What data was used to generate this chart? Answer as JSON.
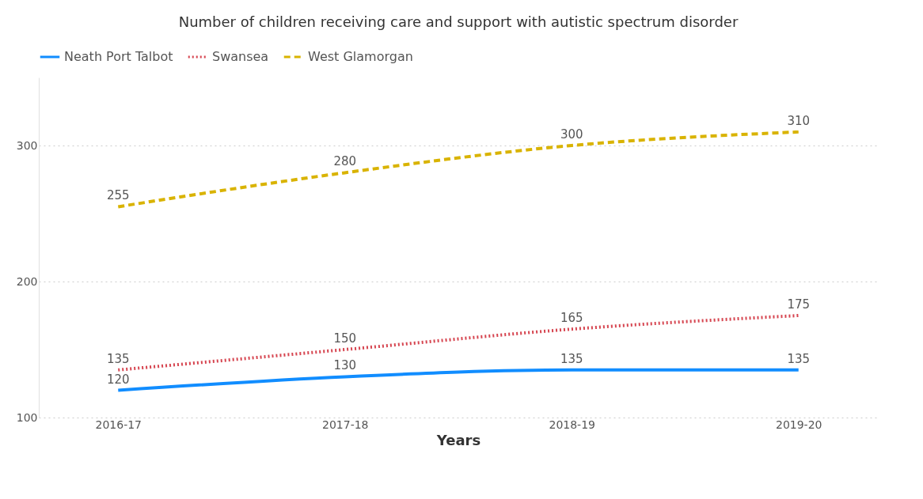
{
  "chart_data": {
    "type": "line",
    "title": "Number of children receiving care and support with autistic spectrum disorder",
    "xlabel": "Years",
    "categories": [
      "2016-17",
      "2017-18",
      "2018-19",
      "2019-20"
    ],
    "series": [
      {
        "name": "Neath Port Talbot",
        "color": "#118dff",
        "line_style": "solid",
        "values": [
          120,
          130,
          135,
          135
        ]
      },
      {
        "name": "Swansea",
        "color": "#d64550",
        "line_style": "dotted",
        "values": [
          135,
          150,
          165,
          175
        ]
      },
      {
        "name": "West Glamorgan",
        "color": "#d9b300",
        "line_style": "dashed",
        "values": [
          255,
          280,
          300,
          310
        ]
      }
    ],
    "ylim": [
      100,
      350
    ],
    "yticks": [
      100,
      200,
      300
    ],
    "grid": "y",
    "legend": "top left",
    "data_labels": true
  }
}
